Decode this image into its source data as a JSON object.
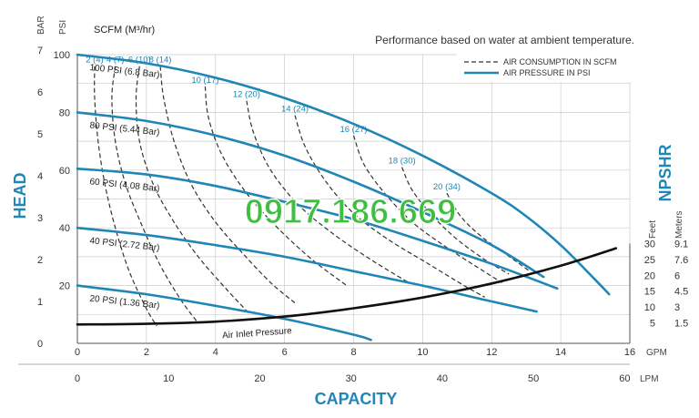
{
  "chart_data": {
    "type": "line",
    "title": "Performance based on water at ambient temperature.",
    "xlabel": "CAPACITY",
    "ylabel": "HEAD",
    "right_label": "NPSHR",
    "x_units_primary": "GPM",
    "x_units_secondary": "LPM",
    "y_units_primary": "PSI",
    "y_units_secondary": "BAR",
    "npshr_units": [
      "Feet",
      "Meters"
    ],
    "x_ticks_gpm": [
      "0",
      "2",
      "4",
      "6",
      "8",
      "10",
      "12",
      "14",
      "16"
    ],
    "x_ticks_lpm": [
      "0",
      "10",
      "20",
      "30",
      "40",
      "50",
      "60"
    ],
    "y_ticks_psi": [
      "20",
      "40",
      "60",
      "80",
      "100"
    ],
    "y_ticks_bar": [
      "0",
      "1",
      "2",
      "3",
      "4",
      "5",
      "6",
      "7"
    ],
    "npshr_ticks_feet": [
      "5",
      "10",
      "15",
      "20",
      "25",
      "30"
    ],
    "npshr_ticks_meters": [
      "1.5",
      "3",
      "4.5",
      "6",
      "7.6",
      "9.1"
    ],
    "xlim_gpm": [
      0,
      16
    ],
    "ylim_psi": [
      0,
      100
    ],
    "scfm_header": "SCFM (M³/hr)",
    "legend": {
      "position": "top-right",
      "air_consumption": "AIR CONSUMPTION IN SCFM",
      "air_pressure": "AIR PRESSURE IN PSI"
    },
    "air_pressure_curves": [
      {
        "label": "100 PSI (6.8 Bar)",
        "points": [
          [
            0,
            100
          ],
          [
            2,
            97
          ],
          [
            4,
            92
          ],
          [
            6,
            85
          ],
          [
            8,
            76
          ],
          [
            10,
            65
          ],
          [
            12,
            52
          ],
          [
            13,
            44
          ],
          [
            14,
            34
          ],
          [
            15,
            22
          ],
          [
            15.4,
            17
          ]
        ]
      },
      {
        "label": "80 PSI (5.44 Bar)",
        "points": [
          [
            0,
            80
          ],
          [
            2,
            77
          ],
          [
            4,
            72
          ],
          [
            6,
            65
          ],
          [
            8,
            56
          ],
          [
            10,
            45.5
          ],
          [
            12,
            34
          ],
          [
            13.5,
            23
          ]
        ]
      },
      {
        "label": "60 PSI (4.08 Bar)",
        "points": [
          [
            0,
            60.5
          ],
          [
            2,
            58.5
          ],
          [
            4,
            54.5
          ],
          [
            6,
            49
          ],
          [
            8,
            43
          ],
          [
            10,
            35.5
          ],
          [
            12,
            27.5
          ],
          [
            13.9,
            19
          ]
        ]
      },
      {
        "label": "40 PSI (2.72 Bar)",
        "points": [
          [
            0,
            40
          ],
          [
            2,
            37.5
          ],
          [
            4,
            34
          ],
          [
            6,
            30
          ],
          [
            8,
            25
          ],
          [
            10,
            20
          ],
          [
            12,
            14.5
          ],
          [
            13.3,
            11
          ]
        ]
      },
      {
        "label": "20 PSI (1.36 Bar)",
        "points": [
          [
            0,
            20
          ],
          [
            2,
            17
          ],
          [
            4,
            13
          ],
          [
            6,
            8.5
          ],
          [
            8,
            3
          ],
          [
            8.5,
            1.2
          ]
        ]
      }
    ],
    "air_consumption_curves": [
      {
        "label": "2 (4)",
        "points": [
          [
            0.5,
            96
          ],
          [
            0.5,
            85
          ],
          [
            0.6,
            70
          ],
          [
            0.8,
            55
          ],
          [
            1.1,
            40
          ],
          [
            1.5,
            25
          ],
          [
            2.0,
            12
          ],
          [
            2.3,
            6
          ]
        ]
      },
      {
        "label": "4 (7)",
        "points": [
          [
            1.1,
            96
          ],
          [
            1.0,
            85
          ],
          [
            1.1,
            70
          ],
          [
            1.4,
            55
          ],
          [
            1.9,
            40
          ],
          [
            2.4,
            27
          ],
          [
            3.0,
            15
          ],
          [
            3.5,
            7
          ]
        ]
      },
      {
        "label": "6 (10)",
        "points": [
          [
            1.8,
            96
          ],
          [
            1.7,
            85
          ],
          [
            1.8,
            70
          ],
          [
            2.2,
            55
          ],
          [
            2.8,
            42
          ],
          [
            3.5,
            30
          ],
          [
            4.3,
            19
          ],
          [
            5.0,
            10
          ]
        ]
      },
      {
        "label": "8 (14)",
        "points": [
          [
            2.4,
            96
          ],
          [
            2.5,
            85
          ],
          [
            2.8,
            70
          ],
          [
            3.3,
            55
          ],
          [
            4.0,
            42
          ],
          [
            4.8,
            31
          ],
          [
            5.6,
            21
          ],
          [
            6.3,
            14
          ]
        ]
      },
      {
        "label": "10 (17)",
        "points": [
          [
            3.7,
            89
          ],
          [
            3.8,
            78
          ],
          [
            4.2,
            65
          ],
          [
            4.9,
            52
          ],
          [
            5.8,
            40
          ],
          [
            6.8,
            29
          ],
          [
            7.8,
            20
          ]
        ]
      },
      {
        "label": "12 (20)",
        "points": [
          [
            4.9,
            84
          ],
          [
            5.1,
            73
          ],
          [
            5.6,
            60
          ],
          [
            6.4,
            48
          ],
          [
            7.4,
            38
          ],
          [
            8.5,
            29
          ],
          [
            9.6,
            21
          ]
        ]
      },
      {
        "label": "14 (24)",
        "points": [
          [
            6.3,
            79
          ],
          [
            6.6,
            68
          ],
          [
            7.2,
            56
          ],
          [
            8.0,
            45
          ],
          [
            9.0,
            36
          ],
          [
            10.1,
            28
          ],
          [
            11.2,
            20
          ],
          [
            11.8,
            16
          ]
        ]
      },
      {
        "label": "16 (27)",
        "points": [
          [
            8.0,
            72
          ],
          [
            8.3,
            62
          ],
          [
            8.9,
            52
          ],
          [
            9.7,
            42
          ],
          [
            10.6,
            34
          ],
          [
            11.5,
            27
          ],
          [
            12.3,
            21
          ]
        ]
      },
      {
        "label": "18 (30)",
        "points": [
          [
            9.4,
            61
          ],
          [
            9.7,
            53
          ],
          [
            10.3,
            44
          ],
          [
            11.0,
            36
          ],
          [
            11.8,
            29
          ],
          [
            12.5,
            24
          ]
        ]
      },
      {
        "label": "20 (34)",
        "points": [
          [
            10.7,
            52
          ],
          [
            11.1,
            44
          ],
          [
            11.7,
            37
          ],
          [
            12.4,
            31
          ],
          [
            13.1,
            25
          ]
        ]
      }
    ],
    "npshr_curve": {
      "label": "Air Inlet Pressure",
      "points": [
        [
          0,
          4.5
        ],
        [
          2,
          4.7
        ],
        [
          4,
          5.4
        ],
        [
          6,
          7
        ],
        [
          8,
          9.6
        ],
        [
          10,
          13
        ],
        [
          12,
          17.4
        ],
        [
          14,
          23
        ],
        [
          15.6,
          28.5
        ]
      ]
    },
    "colors": {
      "air_pressure": "#1f86b5",
      "air_consumption": "#333333",
      "npshr": "#111111",
      "grid": "#cccccc",
      "axis_title": "#1f86b5",
      "overlay": "#3fbf3f"
    },
    "grid": true
  },
  "overlay_text": "0917.186.669"
}
